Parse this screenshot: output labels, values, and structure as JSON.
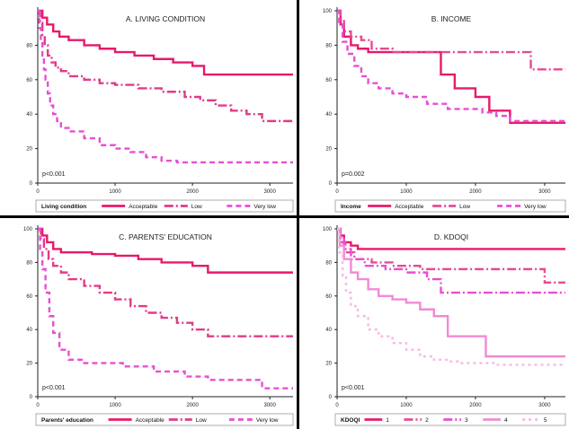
{
  "chart_data": [
    {
      "type": "line",
      "title": "A. LIVING CONDITION",
      "pvalue": "p<0.001",
      "legend_title": "Living condition",
      "xlim": [
        0,
        3300
      ],
      "ylim": [
        0,
        100
      ],
      "xticks": [
        "0",
        "1000",
        "2000",
        "3000"
      ],
      "yticks": [
        "0",
        "20",
        "40",
        "60",
        "80"
      ],
      "series": [
        {
          "name": "Acceptable",
          "color": "#e8196a",
          "dash": "solid",
          "x": [
            0,
            60,
            120,
            200,
            280,
            400,
            600,
            800,
            1000,
            1250,
            1500,
            1750,
            2000,
            2150,
            3300
          ],
          "y": [
            100,
            96,
            92,
            88,
            85,
            83,
            80,
            78,
            76,
            74,
            72,
            70,
            68,
            63,
            63
          ]
        },
        {
          "name": "Low",
          "color": "#e23a8a",
          "dash": "dashdot",
          "x": [
            0,
            30,
            60,
            90,
            130,
            180,
            230,
            300,
            400,
            600,
            800,
            1000,
            1300,
            1600,
            1900,
            2100,
            2300,
            2500,
            2700,
            2900,
            3300
          ],
          "y": [
            100,
            93,
            86,
            80,
            74,
            70,
            67,
            65,
            62,
            60,
            58,
            57,
            55,
            53,
            50,
            48,
            45,
            42,
            40,
            36,
            36
          ]
        },
        {
          "name": "Very low",
          "color": "#e84fd2",
          "dash": "dashed",
          "x": [
            0,
            20,
            40,
            60,
            80,
            100,
            130,
            160,
            200,
            250,
            300,
            400,
            600,
            800,
            1000,
            1200,
            1400,
            1600,
            1800,
            3300
          ],
          "y": [
            100,
            90,
            82,
            74,
            66,
            60,
            52,
            45,
            40,
            36,
            32,
            30,
            26,
            22,
            20,
            18,
            15,
            13,
            12,
            12
          ]
        }
      ]
    },
    {
      "type": "line",
      "title": "B. INCOME",
      "pvalue": "p=0.002",
      "legend_title": "Income",
      "xlim": [
        0,
        3300
      ],
      "ylim": [
        0,
        100
      ],
      "xticks": [
        "0",
        "1000",
        "2000",
        "3000"
      ],
      "yticks": [
        "0",
        "20",
        "40",
        "60",
        "80",
        "100"
      ],
      "series": [
        {
          "name": "Acceptable",
          "color": "#e8196a",
          "dash": "solid",
          "x": [
            0,
            50,
            100,
            200,
            300,
            450,
            1400,
            1500,
            1700,
            2000,
            2200,
            2500,
            3300
          ],
          "y": [
            100,
            92,
            85,
            80,
            78,
            76,
            76,
            63,
            55,
            50,
            42,
            35,
            35
          ]
        },
        {
          "name": "Low",
          "color": "#e64b95",
          "dash": "dashdot",
          "x": [
            0,
            50,
            100,
            200,
            350,
            500,
            800,
            1200,
            2500,
            2800,
            3300
          ],
          "y": [
            100,
            95,
            88,
            85,
            83,
            78,
            76,
            76,
            76,
            66,
            66
          ]
        },
        {
          "name": "Very low",
          "color": "#e84fd2",
          "dash": "dashed",
          "x": [
            0,
            30,
            80,
            150,
            250,
            350,
            450,
            600,
            800,
            1000,
            1300,
            1600,
            1900,
            2100,
            2300,
            2500,
            3300
          ],
          "y": [
            100,
            92,
            82,
            75,
            68,
            62,
            58,
            55,
            52,
            50,
            46,
            43,
            43,
            41,
            39,
            36,
            36
          ]
        }
      ]
    },
    {
      "type": "line",
      "title": "C. PARENTS' EDUCATION",
      "pvalue": "p<0.001",
      "legend_title": "Parents' education",
      "xlim": [
        0,
        3300
      ],
      "ylim": [
        0,
        100
      ],
      "xticks": [
        "0",
        "1000",
        "2000",
        "3000"
      ],
      "yticks": [
        "0",
        "20",
        "40",
        "60",
        "80",
        "100"
      ],
      "series": [
        {
          "name": "Acceptable",
          "color": "#e8196a",
          "dash": "solid",
          "x": [
            0,
            60,
            120,
            200,
            300,
            700,
            1000,
            1300,
            1600,
            2000,
            2200,
            3300
          ],
          "y": [
            100,
            96,
            92,
            88,
            86,
            85,
            84,
            82,
            80,
            78,
            74,
            74
          ]
        },
        {
          "name": "Low",
          "color": "#e23a8a",
          "dash": "dashdot",
          "x": [
            0,
            40,
            80,
            140,
            200,
            300,
            400,
            600,
            800,
            1000,
            1200,
            1400,
            1600,
            1800,
            2000,
            2200,
            3300
          ],
          "y": [
            100,
            94,
            88,
            82,
            78,
            74,
            70,
            66,
            62,
            58,
            54,
            50,
            47,
            44,
            40,
            36,
            36
          ]
        },
        {
          "name": "Very low",
          "color": "#e84fd2",
          "dash": "dashed",
          "x": [
            0,
            30,
            60,
            100,
            150,
            200,
            280,
            400,
            600,
            900,
            1100,
            1500,
            1900,
            2200,
            2600,
            2900,
            3300
          ],
          "y": [
            100,
            88,
            76,
            62,
            48,
            38,
            28,
            22,
            20,
            20,
            18,
            15,
            12,
            10,
            10,
            5,
            5
          ]
        }
      ]
    },
    {
      "type": "line",
      "title": "D. KDOQI",
      "pvalue": "p<0.001",
      "legend_title": "KDOQI",
      "xlim": [
        0,
        3300
      ],
      "ylim": [
        0,
        100
      ],
      "xticks": [
        "0",
        "1000",
        "2000",
        "3000"
      ],
      "yticks": [
        "0",
        "20",
        "40",
        "60",
        "80",
        "100"
      ],
      "series": [
        {
          "name": "1",
          "color": "#e8196a",
          "dash": "solid",
          "x": [
            0,
            40,
            100,
            200,
            300,
            3300
          ],
          "y": [
            100,
            96,
            92,
            90,
            88,
            88
          ]
        },
        {
          "name": "2",
          "color": "#e64b95",
          "dash": "dashdot",
          "x": [
            0,
            50,
            120,
            250,
            500,
            800,
            1200,
            2600,
            3000,
            3300
          ],
          "y": [
            100,
            92,
            86,
            82,
            80,
            78,
            76,
            76,
            68,
            68
          ]
        },
        {
          "name": "3",
          "color": "#e84fd2",
          "dash": "dashdot",
          "x": [
            0,
            40,
            100,
            200,
            400,
            700,
            1000,
            1300,
            1500,
            3300
          ],
          "y": [
            100,
            94,
            88,
            82,
            78,
            76,
            74,
            70,
            62,
            62
          ]
        },
        {
          "name": "4",
          "color": "#f08ad6",
          "dash": "solid",
          "x": [
            0,
            40,
            100,
            200,
            300,
            450,
            600,
            800,
            1000,
            1200,
            1400,
            1600,
            2000,
            2150,
            2300,
            3300
          ],
          "y": [
            100,
            90,
            82,
            74,
            70,
            64,
            60,
            58,
            56,
            52,
            48,
            36,
            36,
            24,
            24,
            24
          ]
        },
        {
          "name": "5",
          "color": "#f7b8e6",
          "dash": "dotted",
          "x": [
            0,
            30,
            80,
            130,
            200,
            300,
            450,
            600,
            800,
            1000,
            1200,
            1400,
            1600,
            1800,
            2000,
            2300,
            3300
          ],
          "y": [
            100,
            86,
            72,
            62,
            54,
            48,
            40,
            36,
            32,
            28,
            24,
            22,
            21,
            20,
            20,
            19,
            19
          ]
        }
      ]
    }
  ]
}
